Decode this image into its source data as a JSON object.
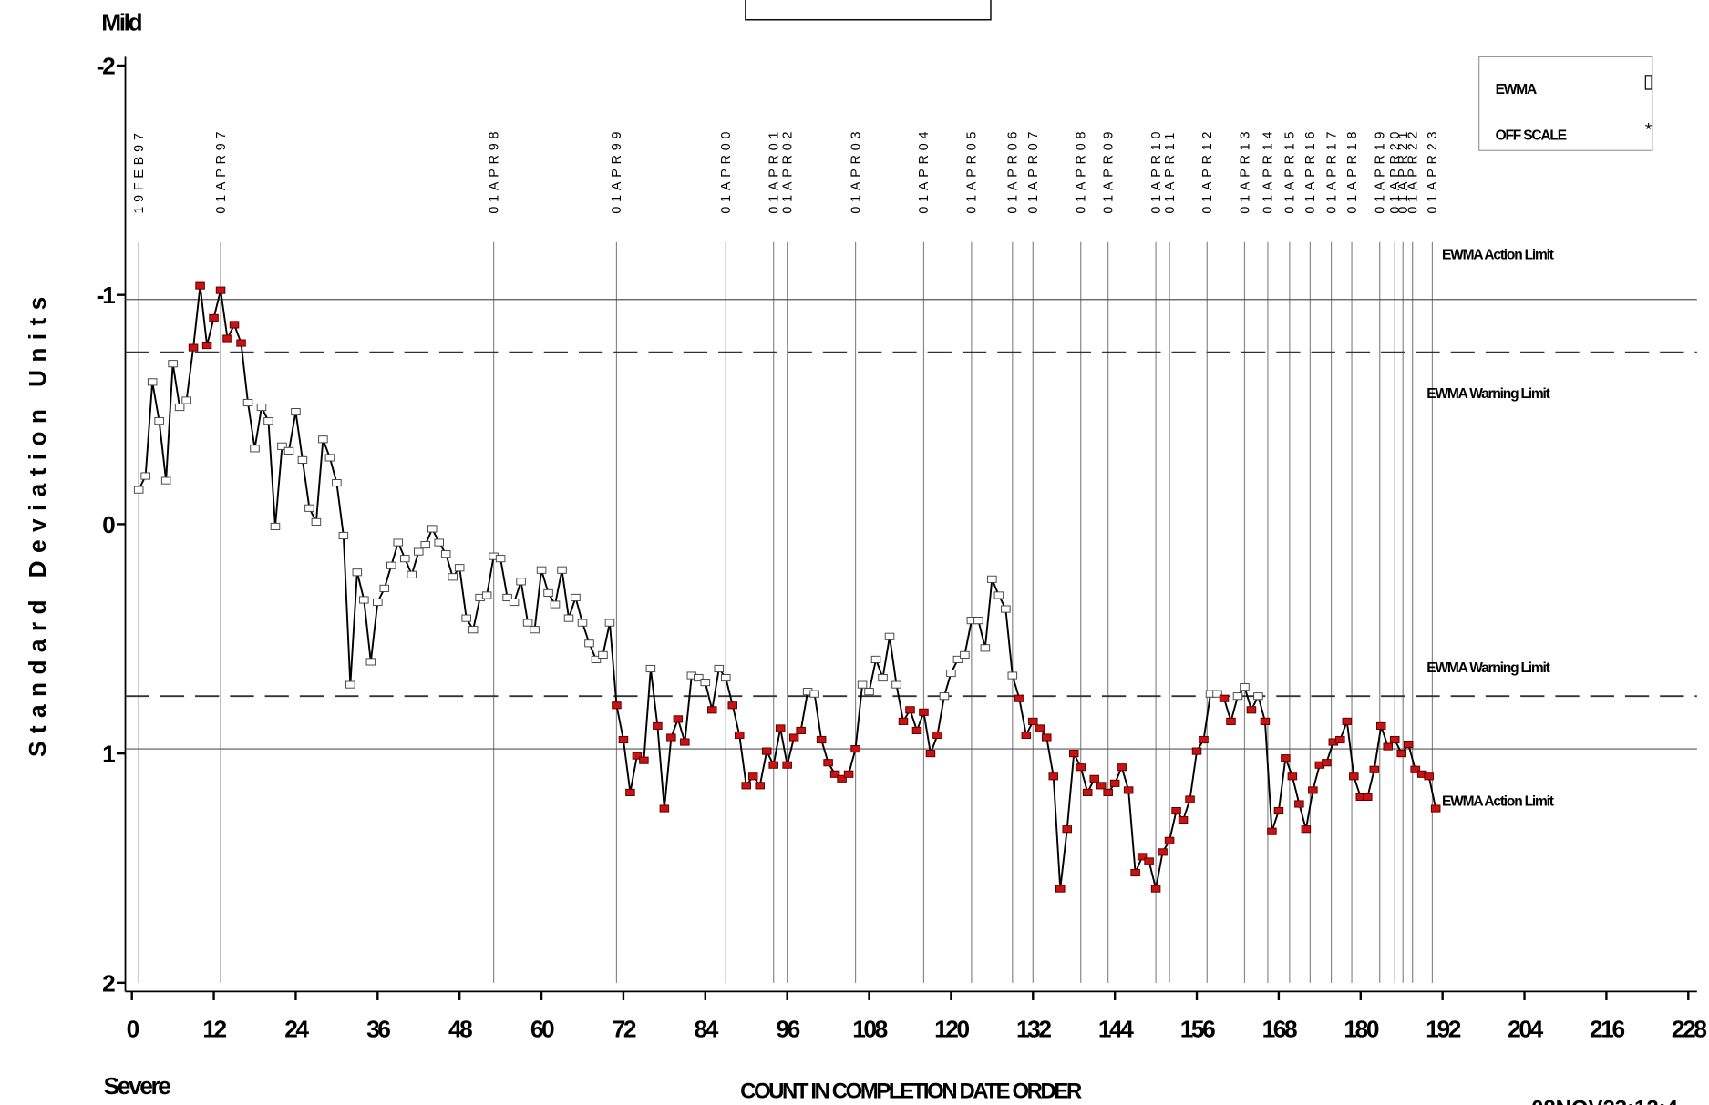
{
  "chart_data": {
    "type": "line",
    "y_label": "Standard Deviation Units",
    "x_label": "COUNT IN COMPLETION DATE ORDER",
    "top_note": "Mild",
    "bottom_note": "Severe",
    "timestamp": "08NOV23:12:4",
    "legend": [
      {
        "name": "EWMA",
        "symbol": "▯"
      },
      {
        "name": "OFF SCALE",
        "symbol": "*"
      }
    ],
    "xlim": [
      0,
      228
    ],
    "xticks": [
      0,
      12,
      24,
      36,
      48,
      60,
      72,
      84,
      96,
      108,
      120,
      132,
      144,
      156,
      168,
      180,
      192,
      204,
      216,
      228
    ],
    "ylim": [
      -2,
      2
    ],
    "yticks": [
      -2,
      -1,
      0,
      1,
      2
    ],
    "inverted_y": true,
    "line_color": "#000000",
    "marker_color": "#ffffff",
    "alert_color": "#cc1111",
    "limits": [
      {
        "value": -0.98,
        "label": "EWMA Action Limit",
        "style": "solid"
      },
      {
        "value": -0.75,
        "label": "EWMA Warning Limit",
        "style": "dashed"
      },
      {
        "value": 0.75,
        "label": "EWMA Warning Limit",
        "style": "dashed"
      },
      {
        "value": 0.98,
        "label": "EWMA Action Limit",
        "style": "solid"
      }
    ],
    "reference_lines": [
      {
        "x": 1,
        "label": "19FEB97"
      },
      {
        "x": 13,
        "label": "01APR97"
      },
      {
        "x": 53,
        "label": "01APR98"
      },
      {
        "x": 71,
        "label": "01APR99"
      },
      {
        "x": 87,
        "label": "01APR00"
      },
      {
        "x": 94,
        "label": "01APR01"
      },
      {
        "x": 96,
        "label": "01APR02"
      },
      {
        "x": 106,
        "label": "01APR03"
      },
      {
        "x": 116,
        "label": "01APR04"
      },
      {
        "x": 123,
        "label": "01APR05"
      },
      {
        "x": 129,
        "label": "01APR06"
      },
      {
        "x": 132,
        "label": "01APR07"
      },
      {
        "x": 139,
        "label": "01APR08"
      },
      {
        "x": 143,
        "label": "01APR09"
      },
      {
        "x": 150,
        "label": "01APR10"
      },
      {
        "x": 152,
        "label": "01APR11"
      },
      {
        "x": 157.5,
        "label": "01APR12"
      },
      {
        "x": 163,
        "label": "01APR13"
      },
      {
        "x": 166.4,
        "label": "01APR14"
      },
      {
        "x": 169.6,
        "label": "01APR15"
      },
      {
        "x": 172.6,
        "label": "01APR16"
      },
      {
        "x": 175.7,
        "label": "01APR17"
      },
      {
        "x": 178.7,
        "label": "01APR18"
      },
      {
        "x": 182.8,
        "label": "01APR19"
      },
      {
        "x": 185,
        "label": "01APR20"
      },
      {
        "x": 186.2,
        "label": "01APR21"
      },
      {
        "x": 187.6,
        "label": "01APR22"
      },
      {
        "x": 190.5,
        "label": "01APR23"
      }
    ],
    "series": [
      {
        "name": "EWMA",
        "x": [
          1,
          2,
          3,
          4,
          5,
          6,
          7,
          8,
          9,
          10,
          11,
          12,
          13,
          14,
          15,
          16,
          17,
          18,
          19,
          20,
          21,
          22,
          23,
          24,
          25,
          26,
          27,
          28,
          29,
          30,
          31,
          32,
          33,
          34,
          35,
          36,
          37,
          38,
          39,
          40,
          41,
          42,
          43,
          44,
          45,
          46,
          47,
          48,
          49,
          50,
          51,
          52,
          53,
          54,
          55,
          56,
          57,
          58,
          59,
          60,
          61,
          62,
          63,
          64,
          65,
          66,
          67,
          68,
          69,
          70,
          71,
          72,
          73,
          74,
          75,
          76,
          77,
          78,
          79,
          80,
          81,
          82,
          83,
          84,
          85,
          86,
          87,
          88,
          89,
          90,
          91,
          92,
          93,
          94,
          95,
          96,
          97,
          98,
          99,
          100,
          101,
          102,
          103,
          104,
          105,
          106,
          107,
          108,
          109,
          110,
          111,
          112,
          113,
          114,
          115,
          116,
          117,
          118,
          119,
          120,
          121,
          122,
          123,
          124,
          125,
          126,
          127,
          128,
          129,
          130,
          131,
          132,
          133,
          134,
          135,
          136,
          137,
          138,
          139,
          140,
          141,
          142,
          143,
          144,
          145,
          146,
          147,
          148,
          149,
          150,
          151,
          152,
          153,
          154,
          155,
          156,
          157,
          158,
          159,
          160,
          161,
          162,
          163,
          164,
          165,
          166,
          167,
          168,
          169,
          170,
          171,
          172,
          173,
          174,
          175,
          176,
          177,
          178,
          179,
          180,
          181,
          182,
          183,
          184,
          185,
          186,
          187,
          188,
          189,
          190,
          191
        ],
        "values": [
          -0.15,
          -0.21,
          -0.62,
          -0.45,
          -0.19,
          -0.7,
          -0.51,
          -0.54,
          -0.77,
          -1.04,
          -0.78,
          -0.9,
          -1.02,
          -0.81,
          -0.87,
          -0.79,
          -0.53,
          -0.33,
          -0.51,
          -0.45,
          0.01,
          -0.34,
          -0.32,
          -0.49,
          -0.28,
          -0.07,
          -0.01,
          -0.37,
          -0.29,
          -0.18,
          0.05,
          0.7,
          0.21,
          0.33,
          0.6,
          0.34,
          0.28,
          0.18,
          0.08,
          0.15,
          0.22,
          0.12,
          0.09,
          0.02,
          0.08,
          0.13,
          0.23,
          0.19,
          0.41,
          0.46,
          0.32,
          0.31,
          0.14,
          0.15,
          0.32,
          0.34,
          0.25,
          0.43,
          0.46,
          0.2,
          0.3,
          0.35,
          0.2,
          0.41,
          0.32,
          0.43,
          0.52,
          0.59,
          0.57,
          0.43,
          0.79,
          0.94,
          1.17,
          1.01,
          1.03,
          0.63,
          0.88,
          1.24,
          0.93,
          0.85,
          0.95,
          0.66,
          0.67,
          0.69,
          0.81,
          0.63,
          0.67,
          0.79,
          0.92,
          1.14,
          1.1,
          1.14,
          0.99,
          1.05,
          0.89,
          1.05,
          0.93,
          0.9,
          0.73,
          0.74,
          0.94,
          1.04,
          1.09,
          1.11,
          1.09,
          0.98,
          0.7,
          0.73,
          0.59,
          0.67,
          0.49,
          0.7,
          0.86,
          0.81,
          0.9,
          0.82,
          1.0,
          0.92,
          0.75,
          0.65,
          0.59,
          0.57,
          0.42,
          0.42,
          0.54,
          0.24,
          0.31,
          0.37,
          0.66,
          0.76,
          0.92,
          0.86,
          0.89,
          0.93,
          1.1,
          1.59,
          1.33,
          1.0,
          1.06,
          1.17,
          1.11,
          1.14,
          1.17,
          1.13,
          1.06,
          1.16,
          1.52,
          1.45,
          1.47,
          1.59,
          1.43,
          1.38,
          1.25,
          1.29,
          1.2,
          0.99,
          0.94,
          0.74,
          0.74,
          0.76,
          0.86,
          0.75,
          0.71,
          0.81,
          0.75,
          0.86,
          1.34,
          1.25,
          1.02,
          1.1,
          1.22,
          1.33,
          1.16,
          1.05,
          1.04,
          0.95,
          0.94,
          0.86,
          1.1,
          1.19,
          1.19,
          1.07,
          0.88,
          0.97,
          0.94,
          1.0,
          0.96,
          1.07,
          1.09,
          1.1,
          1.24
        ]
      }
    ]
  }
}
